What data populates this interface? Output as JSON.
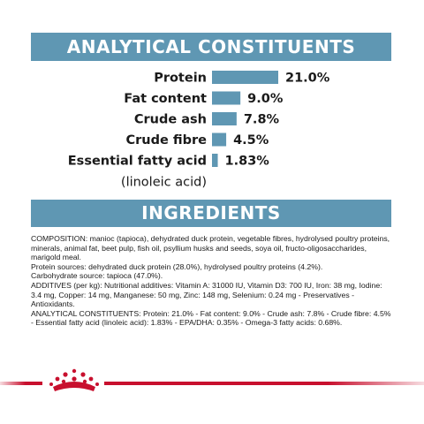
{
  "sections": {
    "analytical_title": "ANALYTICAL CONSTITUENTS",
    "ingredients_title": "INGREDIENTS"
  },
  "colors": {
    "banner": "#5f97b3",
    "bar": "#5f97b3",
    "brand_red": "#c8102e"
  },
  "chart_data": {
    "type": "bar",
    "orientation": "horizontal",
    "categories": [
      "Protein",
      "Fat content",
      "Crude ash",
      "Crude fibre",
      "Essential fatty acid"
    ],
    "category_sublabels": [
      "",
      "",
      "",
      "",
      "(linoleic acid)"
    ],
    "values": [
      21.0,
      9.0,
      7.8,
      4.5,
      1.83
    ],
    "value_labels": [
      "21.0%",
      "9.0%",
      "7.8%",
      "4.5%",
      "1.83%"
    ],
    "unit": "%",
    "xlim": [
      0,
      21
    ]
  },
  "ingredients": {
    "paragraphs": [
      "COMPOSITION: manioc (tapioca), dehydrated duck protein, vegetable fibres, hydrolysed poultry proteins, minerals, animal fat, beet pulp, fish oil, psyllium husks and seeds, soya oil, fructo-oligosaccharides, marigold meal.",
      "Protein sources: dehydrated duck protein (28.0%), hydrolysed poultry proteins (4.2%).",
      "Carbohydrate source: tapioca (47.0%).",
      "ADDITIVES (per kg): Nutritional additives: Vitamin A: 31000 IU, Vitamin D3: 700 IU, Iron: 38 mg, Iodine: 3.4 mg, Copper: 14 mg, Manganese: 50 mg, Zinc: 148 mg, Selenium: 0.24 mg - Preservatives - Antioxidants.",
      "ANALYTICAL CONSTITUENTS: Protein: 21.0% - Fat content: 9.0% - Crude ash: 7.8% - Crude fibre: 4.5% - Essential fatty acid (linoleic acid): 1.83% - EPA/DHA: 0.35% - Omega-3 fatty acids: 0.68%."
    ]
  },
  "footer": {
    "logo_icon": "crown-logo-icon"
  }
}
